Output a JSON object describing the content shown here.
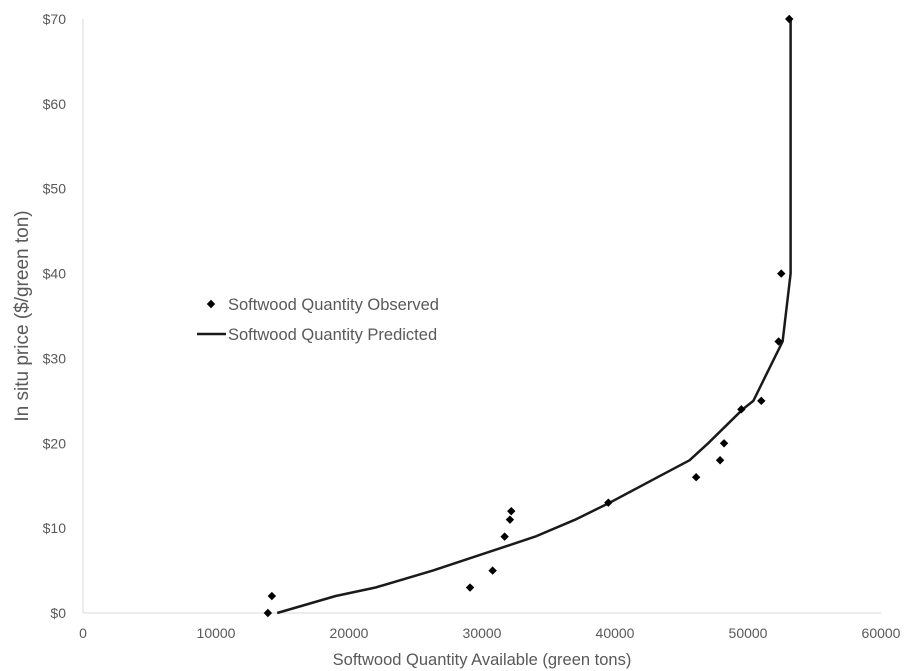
{
  "chart_data": {
    "type": "scatter",
    "title": "",
    "xlabel": "Softwood Quantity Available (green tons)",
    "ylabel": "In situ price ($/green ton)",
    "xlim": [
      0,
      60000
    ],
    "ylim": [
      0,
      70
    ],
    "x_ticks": [
      "0",
      "10000",
      "20000",
      "30000",
      "40000",
      "50000",
      "60000"
    ],
    "y_ticks": [
      "$0",
      "$10",
      "$20",
      "$30",
      "$40",
      "$50",
      "$60",
      "$70"
    ],
    "grid": false,
    "legend_position": "left-center",
    "series": [
      {
        "name": "Softwood Quantity Observed",
        "kind": "markers",
        "marker": "diamond",
        "color": "#000000",
        "points": [
          [
            13900,
            0
          ],
          [
            14200,
            2
          ],
          [
            29100,
            3
          ],
          [
            30800,
            5
          ],
          [
            31700,
            9
          ],
          [
            32100,
            11
          ],
          [
            32200,
            12
          ],
          [
            39500,
            13
          ],
          [
            46100,
            16
          ],
          [
            47900,
            18
          ],
          [
            48200,
            20
          ],
          [
            49500,
            24
          ],
          [
            51000,
            25
          ],
          [
            52300,
            32
          ],
          [
            52500,
            40
          ],
          [
            53100,
            70
          ]
        ]
      },
      {
        "name": "Softwood Quantity Predicted",
        "kind": "line",
        "color": "#1a1a1a",
        "points": [
          [
            14600,
            0
          ],
          [
            19000,
            2
          ],
          [
            22000,
            3
          ],
          [
            26300,
            5
          ],
          [
            34000,
            9
          ],
          [
            37000,
            11
          ],
          [
            39600,
            13
          ],
          [
            43200,
            16
          ],
          [
            45600,
            18
          ],
          [
            47000,
            20
          ],
          [
            49600,
            24
          ],
          [
            50400,
            25
          ],
          [
            52600,
            32
          ],
          [
            53200,
            40
          ],
          [
            53200,
            70
          ]
        ]
      }
    ]
  }
}
